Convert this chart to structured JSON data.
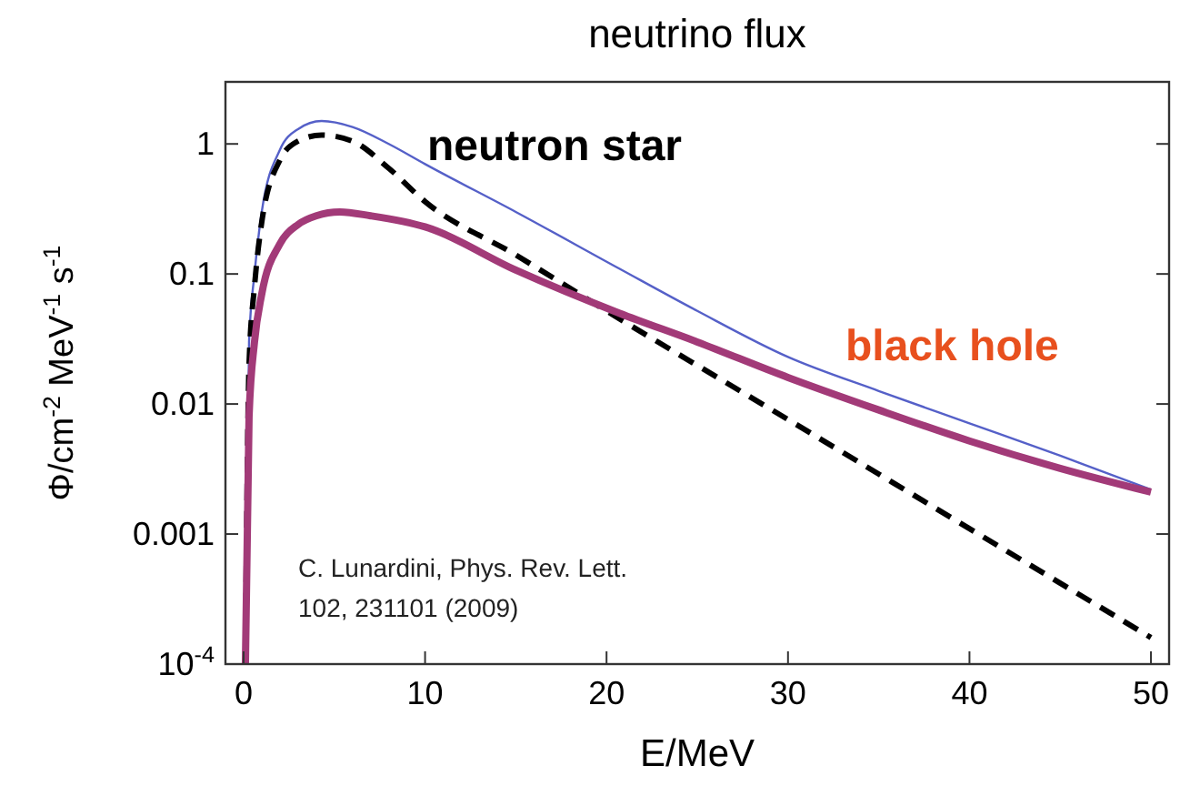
{
  "chart_data": {
    "type": "line",
    "title": "neutrino flux",
    "xlabel": "E/MeV",
    "ylabel": "Φ/cm$^{-2}$ MeV$^{-1}$ s$^{-1}$",
    "log": "y",
    "grid": false,
    "xlim": [
      -1,
      51
    ],
    "xticks": [
      0,
      10,
      20,
      30,
      40,
      50
    ],
    "ylim": [
      0.0001,
      3
    ],
    "yticks": [
      1,
      0.1,
      0.01,
      0.001,
      {
        "value": 0.0001,
        "label": "10$^{-4}$"
      }
    ],
    "series": [
      {
        "color": "#5560c8",
        "line_style": "solid",
        "x": [
          0.1,
          0.3,
          0.6,
          1,
          2,
          3,
          4.3,
          6,
          8,
          10,
          15,
          20.7,
          25,
          30,
          35,
          40,
          45,
          50
        ],
        "values": [
          0.0001,
          0.03,
          0.1,
          0.3,
          0.9,
          1.3,
          1.5,
          1.35,
          1.0,
          0.7,
          0.3,
          0.11,
          0.052,
          0.023,
          0.0126,
          0.0071,
          0.004,
          0.0022
        ]
      },
      {
        "name": "neutron star",
        "color": "#000000",
        "line_style": "dashed",
        "x": [
          0.1,
          0.3,
          0.6,
          1,
          2,
          3,
          4.3,
          6,
          8,
          10,
          15,
          20,
          30,
          40,
          50
        ],
        "values": [
          0.0001,
          0.02,
          0.08,
          0.25,
          0.75,
          1.05,
          1.17,
          1.05,
          0.65,
          0.36,
          0.14,
          0.052,
          0.0076,
          0.0011,
          0.00016
        ]
      },
      {
        "name": "black hole",
        "color": "#a23a78",
        "line_style": "solid",
        "x": [
          0.1,
          0.3,
          0.6,
          1,
          2,
          3,
          4,
          5.3,
          7,
          10,
          15,
          20.7,
          25,
          30,
          35,
          40,
          45,
          50
        ],
        "values": [
          0.0001,
          0.008,
          0.03,
          0.07,
          0.17,
          0.24,
          0.28,
          0.3,
          0.28,
          0.23,
          0.107,
          0.05,
          0.03,
          0.016,
          0.009,
          0.0052,
          0.0032,
          0.0021
        ]
      }
    ],
    "annotations": [
      "C. Lunardini, Phys. Rev. Lett. 102, 231101 (2009)"
    ]
  }
}
